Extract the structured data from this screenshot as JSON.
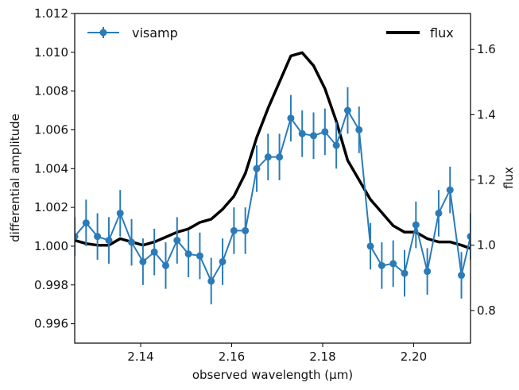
{
  "chart_data": {
    "type": "line",
    "xlabel": "observed wavelength (μm)",
    "ylabel_left": "differential amplitude",
    "ylabel_right": "flux",
    "xlim": [
      2.1255,
      2.2125
    ],
    "ylim_left": [
      0.995,
      1.012
    ],
    "ylim_right": [
      0.7,
      1.71
    ],
    "x_ticks": [
      2.14,
      2.16,
      2.18,
      2.2
    ],
    "x_tick_labels": [
      "2.14",
      "2.16",
      "2.18",
      "2.20"
    ],
    "y_left_ticks": [
      0.996,
      0.998,
      1.0,
      1.002,
      1.004,
      1.006,
      1.008,
      1.01,
      1.012
    ],
    "y_left_tick_labels": [
      "0.996",
      "0.998",
      "1.000",
      "1.002",
      "1.004",
      "1.006",
      "1.008",
      "1.010",
      "1.012"
    ],
    "y_right_ticks": [
      0.8,
      1.0,
      1.2,
      1.4,
      1.6
    ],
    "y_right_tick_labels": [
      "0.8",
      "1.0",
      "1.2",
      "1.4",
      "1.6"
    ],
    "grid": false,
    "series": [
      {
        "name": "visamp",
        "axis": "left",
        "color": "#2b7bb9",
        "marker": "circle",
        "errorbars": true,
        "points": [
          [
            2.1255,
            1.0005,
            0.001
          ],
          [
            2.128,
            1.0012,
            0.0012
          ],
          [
            2.1305,
            1.0005,
            0.0012
          ],
          [
            2.133,
            1.0003,
            0.0012
          ],
          [
            2.1355,
            1.0017,
            0.0012
          ],
          [
            2.138,
            1.0002,
            0.0012
          ],
          [
            2.1405,
            0.9992,
            0.0012
          ],
          [
            2.143,
            0.9997,
            0.0012
          ],
          [
            2.1455,
            0.999,
            0.0012
          ],
          [
            2.148,
            1.0003,
            0.0012
          ],
          [
            2.1505,
            0.9996,
            0.0012
          ],
          [
            2.153,
            0.9995,
            0.0012
          ],
          [
            2.1555,
            0.9982,
            0.0012
          ],
          [
            2.158,
            0.9992,
            0.0012
          ],
          [
            2.1605,
            1.0008,
            0.0012
          ],
          [
            2.163,
            1.0008,
            0.0012
          ],
          [
            2.1655,
            1.004,
            0.0012
          ],
          [
            2.168,
            1.0046,
            0.0012
          ],
          [
            2.1705,
            1.0046,
            0.0012
          ],
          [
            2.173,
            1.0066,
            0.0012
          ],
          [
            2.1755,
            1.0058,
            0.0012
          ],
          [
            2.178,
            1.0057,
            0.0012
          ],
          [
            2.1805,
            1.0059,
            0.0012
          ],
          [
            2.183,
            1.0052,
            0.0012
          ],
          [
            2.1855,
            1.007,
            0.0012
          ],
          [
            2.188,
            1.006,
            0.0012
          ],
          [
            2.1905,
            1.0,
            0.0012
          ],
          [
            2.193,
            0.999,
            0.0012
          ],
          [
            2.1955,
            0.9991,
            0.0012
          ],
          [
            2.198,
            0.9986,
            0.0012
          ],
          [
            2.2005,
            1.0011,
            0.0012
          ],
          [
            2.203,
            0.9987,
            0.0012
          ],
          [
            2.2055,
            1.0017,
            0.0012
          ],
          [
            2.208,
            1.0029,
            0.0012
          ],
          [
            2.2105,
            0.9985,
            0.0012
          ],
          [
            2.2125,
            1.0005,
            0.0012
          ]
        ]
      },
      {
        "name": "flux",
        "axis": "right",
        "color": "#000000",
        "points": [
          [
            2.1255,
            1.015
          ],
          [
            2.128,
            1.005
          ],
          [
            2.1305,
            1.0
          ],
          [
            2.133,
            1.0
          ],
          [
            2.1355,
            1.02
          ],
          [
            2.138,
            1.01
          ],
          [
            2.1405,
            1.0
          ],
          [
            2.143,
            1.01
          ],
          [
            2.1455,
            1.025
          ],
          [
            2.148,
            1.04
          ],
          [
            2.1505,
            1.05
          ],
          [
            2.153,
            1.07
          ],
          [
            2.1555,
            1.08
          ],
          [
            2.158,
            1.11
          ],
          [
            2.1605,
            1.15
          ],
          [
            2.163,
            1.22
          ],
          [
            2.1655,
            1.33
          ],
          [
            2.168,
            1.42
          ],
          [
            2.1705,
            1.5
          ],
          [
            2.173,
            1.58
          ],
          [
            2.1755,
            1.59
          ],
          [
            2.178,
            1.55
          ],
          [
            2.1805,
            1.48
          ],
          [
            2.183,
            1.38
          ],
          [
            2.1855,
            1.26
          ],
          [
            2.188,
            1.2
          ],
          [
            2.1905,
            1.14
          ],
          [
            2.193,
            1.1
          ],
          [
            2.1955,
            1.06
          ],
          [
            2.198,
            1.04
          ],
          [
            2.2005,
            1.04
          ],
          [
            2.203,
            1.02
          ],
          [
            2.2055,
            1.01
          ],
          [
            2.208,
            1.01
          ],
          [
            2.2105,
            1.0
          ],
          [
            2.2125,
            0.99
          ]
        ]
      }
    ],
    "legend": [
      {
        "label": "visamp",
        "placement": "top-left"
      },
      {
        "label": "flux",
        "placement": "top-right"
      }
    ]
  }
}
